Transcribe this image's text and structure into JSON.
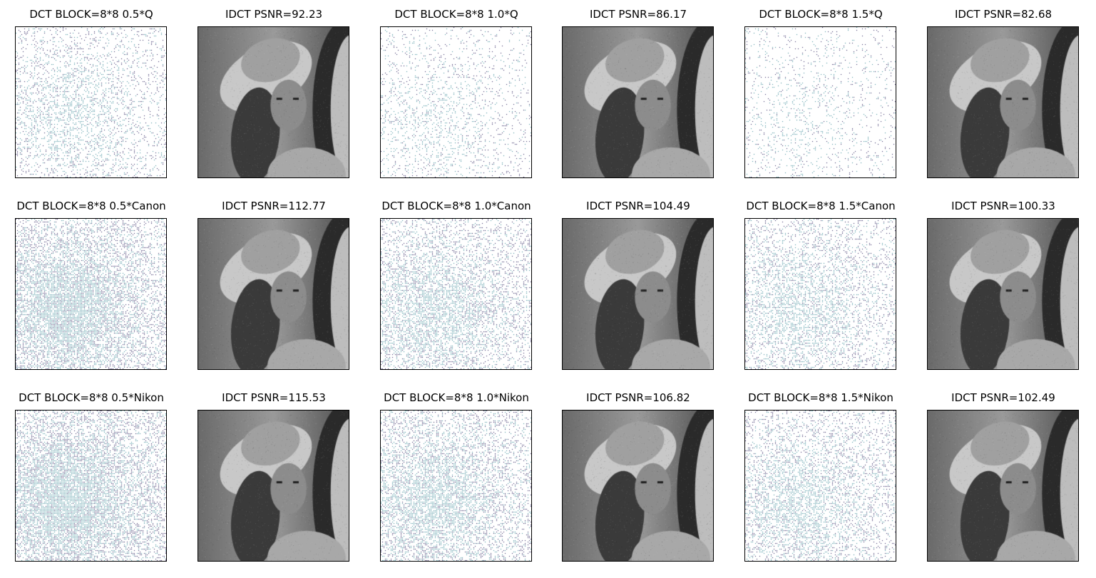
{
  "figure": {
    "rows": [
      {
        "panels": [
          {
            "title": "DCT BLOCK=8*8 0.5*Q",
            "kind": "dct",
            "density": 0.28
          },
          {
            "title": "IDCT PSNR=92.23",
            "kind": "photo"
          },
          {
            "title": "DCT BLOCK=8*8 1.0*Q",
            "kind": "dct",
            "density": 0.18
          },
          {
            "title": "IDCT PSNR=86.17",
            "kind": "photo"
          },
          {
            "title": "DCT BLOCK=8*8 1.5*Q",
            "kind": "dct",
            "density": 0.13
          },
          {
            "title": "IDCT PSNR=82.68",
            "kind": "photo"
          }
        ]
      },
      {
        "panels": [
          {
            "title": "DCT BLOCK=8*8 0.5*Canon",
            "kind": "dct",
            "density": 0.62
          },
          {
            "title": "IDCT PSNR=112.77",
            "kind": "photo"
          },
          {
            "title": "DCT BLOCK=8*8 1.0*Canon",
            "kind": "dct",
            "density": 0.45
          },
          {
            "title": "IDCT PSNR=104.49",
            "kind": "photo"
          },
          {
            "title": "DCT BLOCK=8*8 1.5*Canon",
            "kind": "dct",
            "density": 0.36
          },
          {
            "title": "IDCT PSNR=100.33",
            "kind": "photo"
          }
        ]
      },
      {
        "panels": [
          {
            "title": "DCT BLOCK=8*8 0.5*Nikon",
            "kind": "dct",
            "density": 0.66
          },
          {
            "title": "IDCT PSNR=115.53",
            "kind": "photo"
          },
          {
            "title": "DCT BLOCK=8*8 1.0*Nikon",
            "kind": "dct",
            "density": 0.5
          },
          {
            "title": "IDCT PSNR=106.82",
            "kind": "photo"
          },
          {
            "title": "DCT BLOCK=8*8 1.5*Nikon",
            "kind": "dct",
            "density": 0.4
          },
          {
            "title": "IDCT PSNR=102.49",
            "kind": "photo"
          }
        ]
      }
    ],
    "colors": {
      "dct_dot_dark": "#2b1f5e",
      "dct_dot_teal": "#3a8a98",
      "background": "#ffffff",
      "frame": "#000000"
    }
  }
}
